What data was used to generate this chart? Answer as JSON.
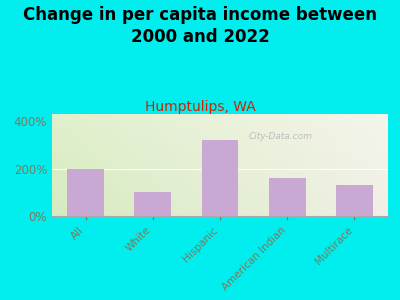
{
  "title": "Change in per capita income between\n2000 and 2022",
  "subtitle": "Humptulips, WA",
  "categories": [
    "All",
    "White",
    "Hispanic",
    "American Indian",
    "Multirace"
  ],
  "values": [
    200,
    100,
    320,
    160,
    130
  ],
  "bar_color": "#c9a8d4",
  "background_color": "#00EEEE",
  "title_fontsize": 12,
  "subtitle_fontsize": 10,
  "tick_label_color": "#7a7a5a",
  "ytick_labels": [
    "0%",
    "200%",
    "400%"
  ],
  "ytick_values": [
    0,
    200,
    400
  ],
  "ylim": [
    0,
    430
  ],
  "watermark": "City-Data.com",
  "watermark_color": "#aaaaaa",
  "plot_left_color": "#d8edbe",
  "plot_right_color": "#f0f0e8"
}
